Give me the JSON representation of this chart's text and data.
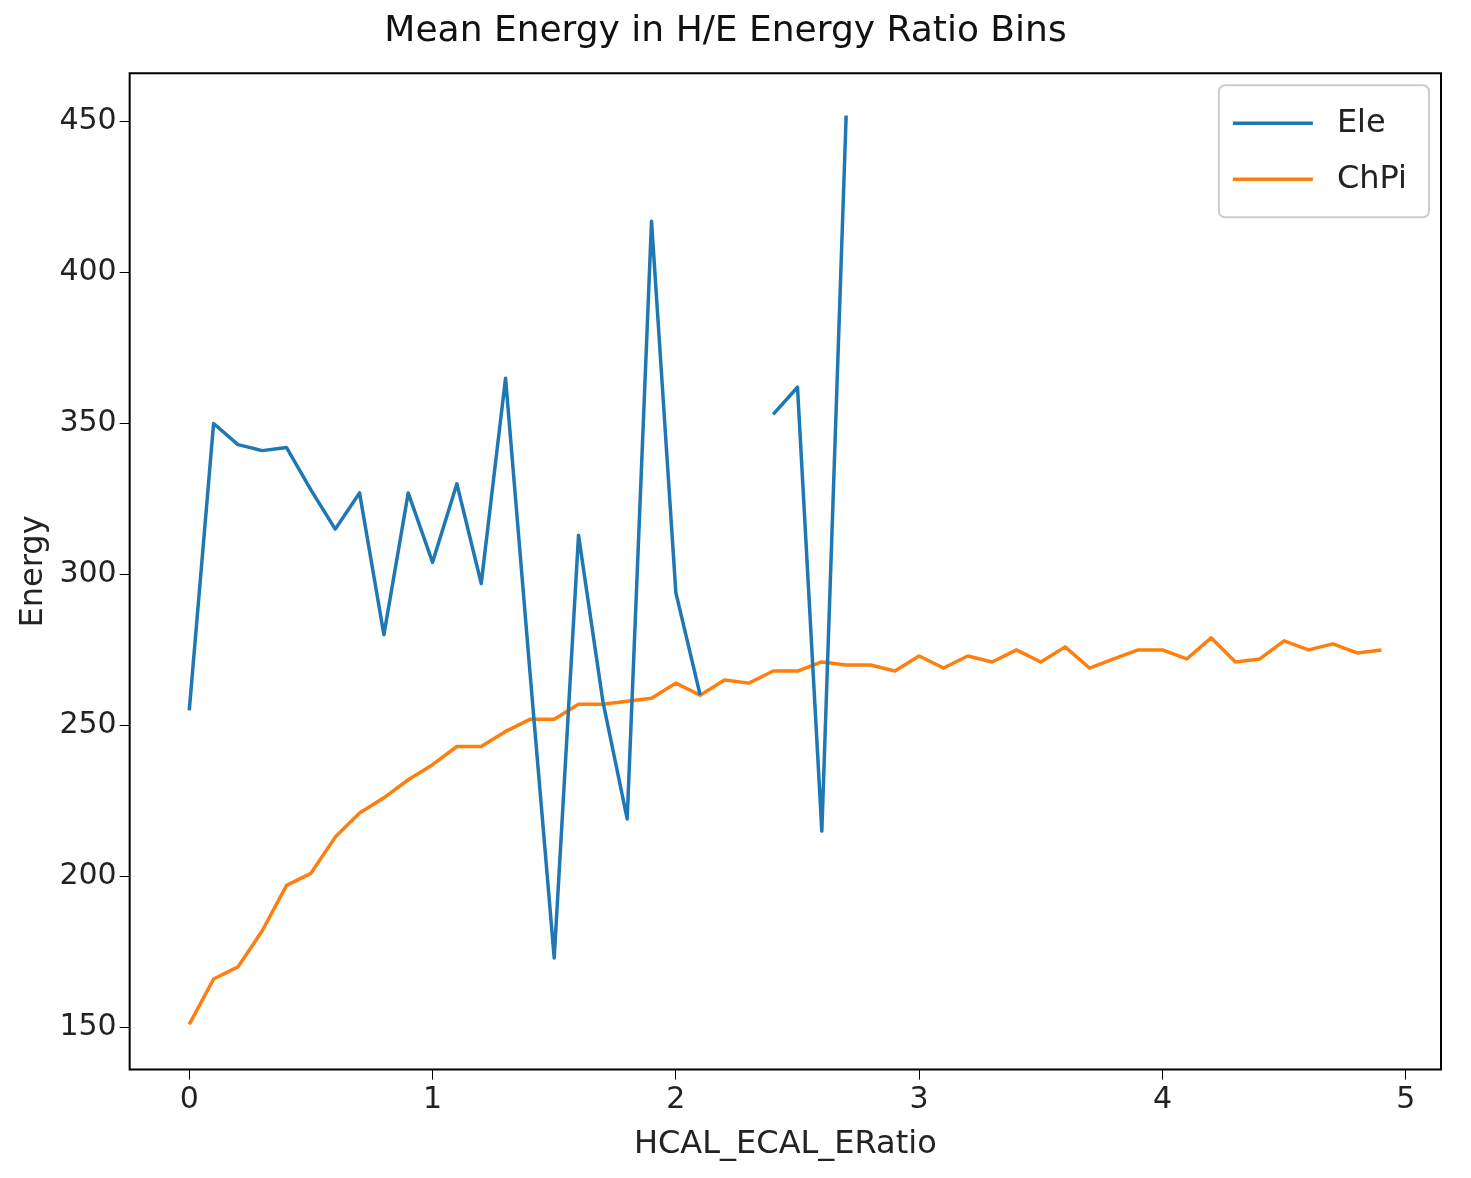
{
  "chart_data": {
    "type": "line",
    "title": "Mean Energy in H/E Energy Ratio Bins",
    "xlabel": "HCAL_ECAL_ERatio",
    "ylabel": "Energy",
    "xlim": [
      -0.245,
      5.145
    ],
    "xticks": [
      0,
      1,
      2,
      3,
      4,
      5
    ],
    "ylim": [
      136,
      466
    ],
    "yticks": [
      150,
      200,
      250,
      300,
      350,
      400,
      450
    ],
    "legend": "top right",
    "grid": false,
    "series": [
      {
        "name": "Ele",
        "color": "#1f77b4",
        "x": [
          0,
          0.1,
          0.2,
          0.3,
          0.4,
          0.5,
          0.6,
          0.7,
          0.8,
          0.9,
          1.0,
          1.1,
          1.2,
          1.3,
          1.4,
          1.5,
          1.6,
          1.7,
          1.8,
          1.9,
          2.0,
          2.1,
          2.2,
          2.3,
          2.4,
          2.5,
          2.6,
          2.7
        ],
        "values": [
          255,
          350,
          343,
          341,
          342,
          328,
          315,
          327,
          280,
          327,
          304,
          330,
          297,
          365,
          268,
          173,
          313,
          258,
          219,
          417,
          294,
          260,
          null,
          null,
          353,
          362,
          215,
          452
        ]
      },
      {
        "name": "ChPi",
        "color": "#ff7f0e",
        "x": [
          0,
          0.1,
          0.2,
          0.3,
          0.4,
          0.5,
          0.6,
          0.7,
          0.8,
          0.9,
          1.0,
          1.1,
          1.2,
          1.3,
          1.4,
          1.5,
          1.6,
          1.7,
          1.8,
          1.9,
          2.0,
          2.1,
          2.2,
          2.3,
          2.4,
          2.5,
          2.6,
          2.7,
          2.8,
          2.9,
          3.0,
          3.1,
          3.2,
          3.3,
          3.4,
          3.5,
          3.6,
          3.7,
          3.8,
          3.9,
          4.0,
          4.1,
          4.2,
          4.3,
          4.4,
          4.5,
          4.6,
          4.7,
          4.8,
          4.9
        ],
        "values": [
          151,
          166,
          170,
          182,
          197,
          201,
          213,
          221,
          226,
          232,
          237,
          243,
          243,
          248,
          252,
          252,
          257,
          257,
          258,
          259,
          264,
          260,
          265,
          264,
          268,
          268,
          271,
          270,
          270,
          268,
          273,
          269,
          273,
          271,
          275,
          271,
          276,
          269,
          272,
          275,
          275,
          272,
          279,
          271,
          272,
          278,
          275,
          277,
          274,
          275
        ]
      }
    ]
  }
}
